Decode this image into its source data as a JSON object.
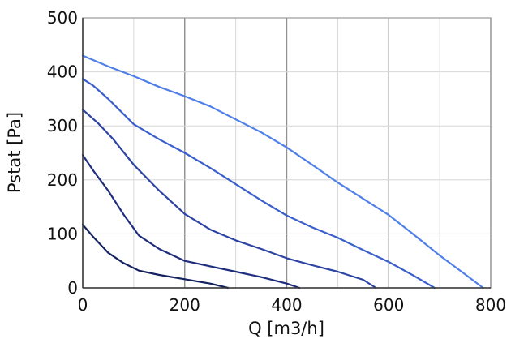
{
  "chart_data": {
    "type": "line",
    "title": "",
    "xlabel": "Q [m3/h]",
    "ylabel": "Pstat [Pa]",
    "xlim": [
      0,
      800
    ],
    "ylim": [
      0,
      500
    ],
    "x_major_ticks": [
      0,
      200,
      400,
      600,
      800
    ],
    "x_tick_labels": [
      "0",
      "200",
      "400",
      "600",
      "800"
    ],
    "x_minor_ticks": [
      100,
      300,
      500,
      700
    ],
    "y_ticks": [
      0,
      100,
      200,
      300,
      400,
      500
    ],
    "y_tick_labels": [
      "0",
      "100",
      "200",
      "300",
      "400",
      "500"
    ],
    "grid": true,
    "legend": "none",
    "series": [
      {
        "color": "#4f7fe8",
        "points": [
          [
            0,
            430
          ],
          [
            50,
            410
          ],
          [
            100,
            392
          ],
          [
            150,
            372
          ],
          [
            200,
            355
          ],
          [
            250,
            336
          ],
          [
            300,
            312
          ],
          [
            350,
            288
          ],
          [
            400,
            260
          ],
          [
            450,
            228
          ],
          [
            500,
            195
          ],
          [
            550,
            165
          ],
          [
            600,
            135
          ],
          [
            650,
            98
          ],
          [
            700,
            60
          ],
          [
            750,
            25
          ],
          [
            785,
            0
          ]
        ]
      },
      {
        "color": "#3a5fcc",
        "points": [
          [
            0,
            387
          ],
          [
            20,
            375
          ],
          [
            50,
            350
          ],
          [
            100,
            303
          ],
          [
            150,
            275
          ],
          [
            200,
            250
          ],
          [
            250,
            222
          ],
          [
            300,
            192
          ],
          [
            350,
            162
          ],
          [
            400,
            134
          ],
          [
            450,
            112
          ],
          [
            500,
            93
          ],
          [
            550,
            70
          ],
          [
            600,
            48
          ],
          [
            650,
            22
          ],
          [
            690,
            0
          ]
        ]
      },
      {
        "color": "#2d43a3",
        "points": [
          [
            0,
            330
          ],
          [
            30,
            305
          ],
          [
            60,
            275
          ],
          [
            100,
            228
          ],
          [
            150,
            180
          ],
          [
            200,
            137
          ],
          [
            250,
            108
          ],
          [
            300,
            88
          ],
          [
            350,
            72
          ],
          [
            400,
            55
          ],
          [
            450,
            42
          ],
          [
            500,
            30
          ],
          [
            550,
            15
          ],
          [
            575,
            0
          ]
        ]
      },
      {
        "color": "#1f2d7d",
        "points": [
          [
            0,
            246
          ],
          [
            20,
            218
          ],
          [
            50,
            180
          ],
          [
            80,
            136
          ],
          [
            110,
            97
          ],
          [
            150,
            72
          ],
          [
            200,
            50
          ],
          [
            250,
            40
          ],
          [
            300,
            30
          ],
          [
            350,
            20
          ],
          [
            400,
            8
          ],
          [
            425,
            0
          ]
        ]
      },
      {
        "color": "#152260",
        "points": [
          [
            0,
            117
          ],
          [
            20,
            95
          ],
          [
            50,
            65
          ],
          [
            80,
            46
          ],
          [
            110,
            32
          ],
          [
            150,
            24
          ],
          [
            200,
            16
          ],
          [
            250,
            8
          ],
          [
            285,
            0
          ]
        ]
      }
    ]
  }
}
